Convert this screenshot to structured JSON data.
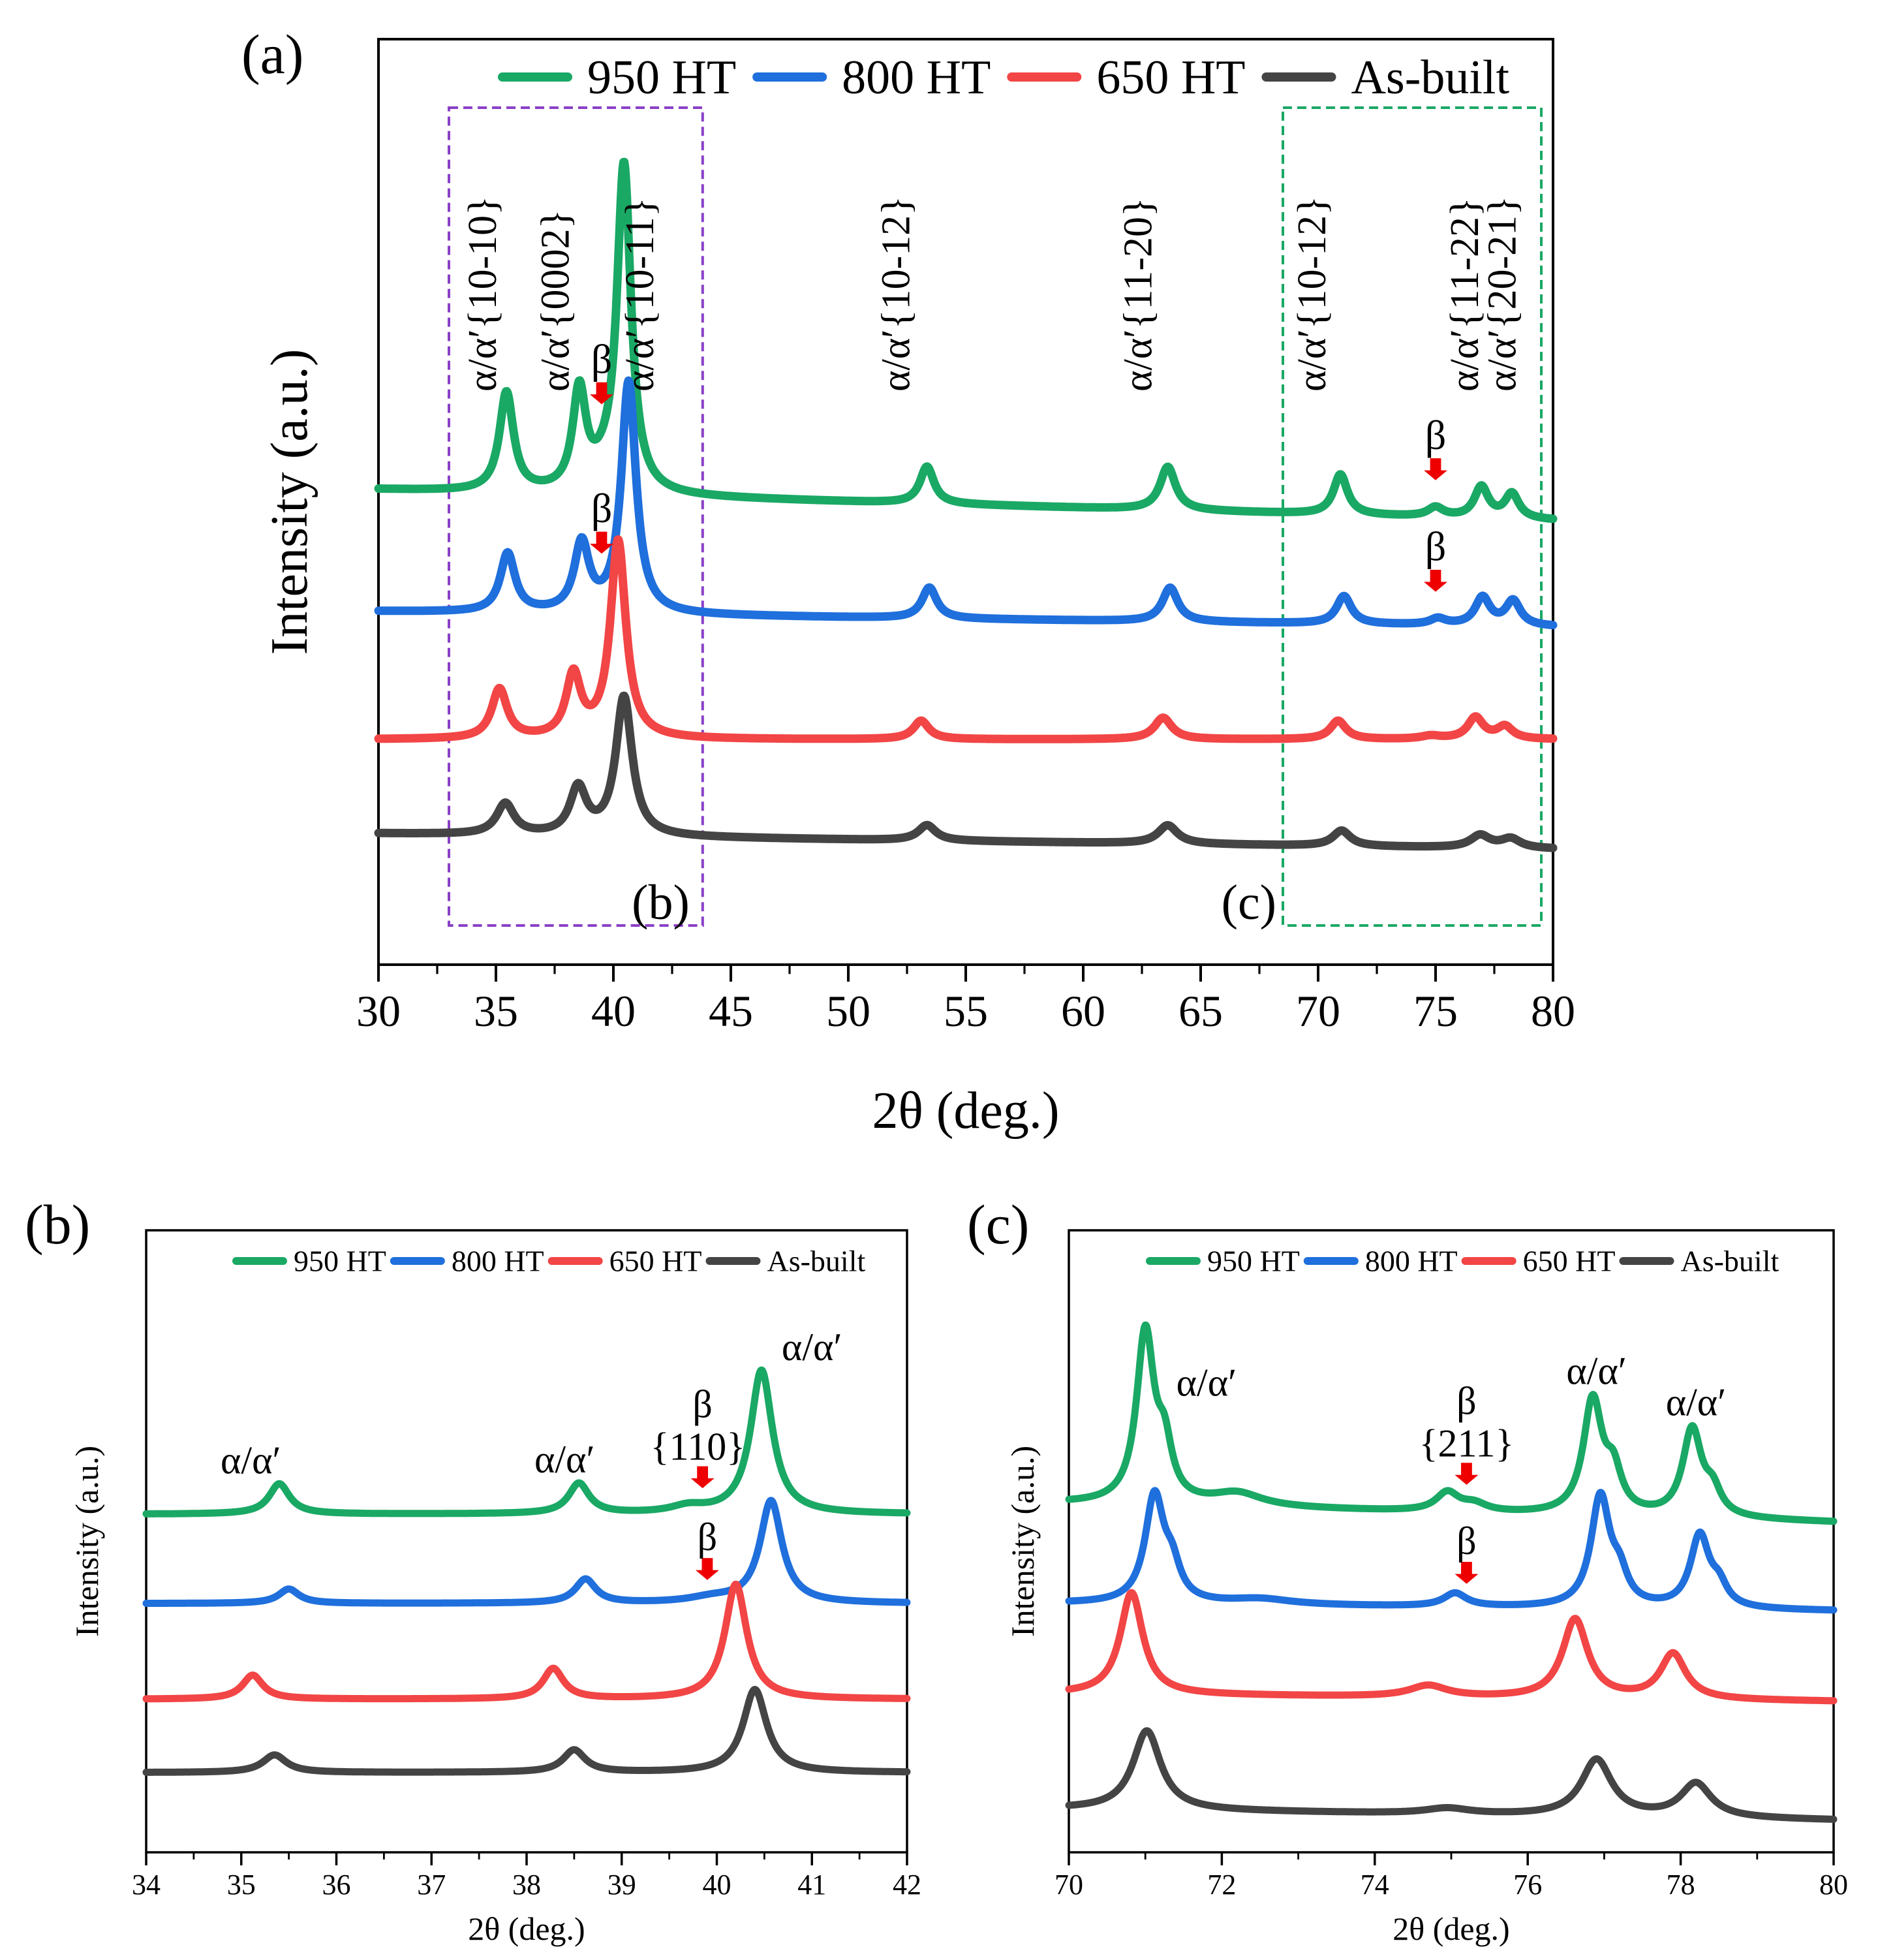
{
  "figure": {
    "panel_labels": {
      "a": "(a)",
      "b": "(b)",
      "c": "(c)"
    },
    "colors": {
      "950 HT": "#1aa865",
      "800 HT": "#1f6fdc",
      "650 HT": "#f24545",
      "As-built": "#444444",
      "beta_arrow": "#ee0000",
      "box_b": "#8a3fc7",
      "box_c": "#1aa865"
    }
  },
  "chart_data": [
    {
      "panel": "a",
      "type": "line",
      "title": "",
      "xlabel": "2θ (deg.)",
      "ylabel": "Intensity (a.u.)",
      "xlim": [
        30,
        80
      ],
      "xticks": [
        "30",
        "35",
        "40",
        "45",
        "50",
        "55",
        "60",
        "65",
        "70",
        "75",
        "80"
      ],
      "legend": [
        "950 HT",
        "800 HT",
        "650 HT",
        "As-built"
      ],
      "legend_position": "top",
      "series": [
        {
          "name": "950 HT",
          "baseline": 11.9,
          "slope": -0.02,
          "peaks": [
            [
              35.45,
              0.36,
              3.2
            ],
            [
              38.55,
              0.34,
              3.2
            ],
            [
              39.6,
              0.6,
              0.4
            ],
            [
              40.45,
              0.36,
              10.6
            ],
            [
              53.35,
              0.36,
              1.2
            ],
            [
              63.6,
              0.4,
              1.4
            ],
            [
              70.95,
              0.36,
              1.3
            ],
            [
              75.0,
              0.4,
              0.3
            ],
            [
              76.95,
              0.36,
              1.0
            ],
            [
              78.25,
              0.36,
              0.8
            ]
          ]
        },
        {
          "name": "800 HT",
          "baseline": 8.2,
          "slope": -0.01,
          "peaks": [
            [
              35.5,
              0.38,
              1.9
            ],
            [
              38.65,
              0.38,
              2.2
            ],
            [
              40.65,
              0.38,
              7.5
            ],
            [
              53.45,
              0.38,
              1.0
            ],
            [
              63.7,
              0.4,
              1.1
            ],
            [
              71.1,
              0.38,
              0.9
            ],
            [
              75.1,
              0.4,
              0.2
            ],
            [
              77.0,
              0.38,
              0.9
            ],
            [
              78.3,
              0.38,
              0.8
            ]
          ]
        },
        {
          "name": "650 HT",
          "baseline": 4.3,
          "slope": 0.0,
          "peaks": [
            [
              35.15,
              0.4,
              1.6
            ],
            [
              38.3,
              0.38,
              2.0
            ],
            [
              40.2,
              0.4,
              6.4
            ],
            [
              53.1,
              0.4,
              0.6
            ],
            [
              63.4,
              0.45,
              0.7
            ],
            [
              70.85,
              0.4,
              0.6
            ],
            [
              74.8,
              0.5,
              0.1
            ],
            [
              76.7,
              0.4,
              0.7
            ],
            [
              77.95,
              0.4,
              0.4
            ]
          ]
        },
        {
          "name": "As-built",
          "baseline": 1.0,
          "slope": -0.01,
          "peaks": [
            [
              35.4,
              0.45,
              1.0
            ],
            [
              38.5,
              0.42,
              1.5
            ],
            [
              40.45,
              0.42,
              4.5
            ],
            [
              53.35,
              0.45,
              0.5
            ],
            [
              63.6,
              0.5,
              0.6
            ],
            [
              71.0,
              0.45,
              0.5
            ],
            [
              76.9,
              0.5,
              0.4
            ],
            [
              78.2,
              0.5,
              0.3
            ]
          ]
        }
      ],
      "peak_labels": [
        {
          "text": "α/α′{10-10}",
          "x": 35.0
        },
        {
          "text": "α/α′{0002}",
          "x": 38.1
        },
        {
          "text": "α/α′{10-11}",
          "x": 41.7
        },
        {
          "text": "α/α′{10-12}",
          "x": 52.6
        },
        {
          "text": "α/α′{11-20}",
          "x": 62.9
        },
        {
          "text": "α/α′{10-12}",
          "x": 70.3
        },
        {
          "text": "α/α′{11-22}",
          "x": 76.8
        },
        {
          "text": "α/α′{20-21}",
          "x": 78.4
        }
      ],
      "beta_marks": [
        {
          "text": "β",
          "x": 39.5,
          "series": "950 HT"
        },
        {
          "text": "β",
          "x": 39.5,
          "series": "800 HT"
        },
        {
          "text": "β",
          "x": 75.0,
          "series": "950 HT"
        },
        {
          "text": "β",
          "x": 75.0,
          "series": "800 HT"
        }
      ],
      "inset_boxes": [
        {
          "label": "(b)",
          "x_range": [
            33,
            43.8
          ]
        },
        {
          "label": "(c)",
          "x_range": [
            68.5,
            79.5
          ]
        }
      ]
    },
    {
      "panel": "b",
      "type": "line",
      "title": "",
      "xlabel": "2θ (deg.)",
      "ylabel": "Intensity (a.u.)",
      "xlim": [
        34,
        42
      ],
      "xticks": [
        "34",
        "35",
        "36",
        "37",
        "38",
        "39",
        "40",
        "41",
        "42"
      ],
      "legend": [
        "950 HT",
        "800 HT",
        "650 HT",
        "As-built"
      ],
      "legend_position": "top-right",
      "series": [
        {
          "name": "950 HT",
          "baseline": 8.6,
          "slope": 0.0,
          "peaks": [
            [
              35.4,
              0.13,
              0.95
            ],
            [
              38.55,
              0.13,
              0.95
            ],
            [
              39.7,
              0.22,
              0.2
            ],
            [
              40.47,
              0.14,
              4.5
            ]
          ]
        },
        {
          "name": "800 HT",
          "baseline": 5.8,
          "slope": 0.0,
          "peaks": [
            [
              35.5,
              0.13,
              0.45
            ],
            [
              38.62,
              0.13,
              0.75
            ],
            [
              39.95,
              0.3,
              0.15
            ],
            [
              40.57,
              0.14,
              3.2
            ]
          ]
        },
        {
          "name": "650 HT",
          "baseline": 2.8,
          "slope": 0.0,
          "peaks": [
            [
              35.12,
              0.13,
              0.75
            ],
            [
              38.28,
              0.13,
              0.95
            ],
            [
              40.2,
              0.14,
              3.6
            ]
          ]
        },
        {
          "name": "As-built",
          "baseline": 0.5,
          "slope": 0.0,
          "peaks": [
            [
              35.35,
              0.15,
              0.55
            ],
            [
              38.5,
              0.14,
              0.7
            ],
            [
              40.4,
              0.15,
              2.6
            ]
          ]
        }
      ],
      "annotations": [
        {
          "text": "α/α′",
          "x": 35.1,
          "series": "950 HT"
        },
        {
          "text": "α/α′",
          "x": 38.4,
          "series": "950 HT"
        },
        {
          "text": "α/α′",
          "x": 41.0,
          "series": "950 HT"
        },
        {
          "text": "β",
          "x": 39.85,
          "series": "950 HT"
        },
        {
          "text": "{110}",
          "x": 39.8,
          "series": "950 HT"
        },
        {
          "text": "β",
          "x": 39.9,
          "series": "800 HT"
        }
      ]
    },
    {
      "panel": "c",
      "type": "line",
      "title": "",
      "xlabel": "2θ (deg.)",
      "ylabel": "Intensity (a.u.)",
      "xlim": [
        70,
        80
      ],
      "xticks": [
        "70",
        "72",
        "74",
        "76",
        "78",
        "80"
      ],
      "legend": [
        "950 HT",
        "800 HT",
        "650 HT",
        "As-built"
      ],
      "legend_position": "top-right",
      "series": [
        {
          "name": "950 HT",
          "baseline": 9.0,
          "slope": -0.05,
          "peaks": [
            [
              71.0,
              0.14,
              4.5
            ],
            [
              71.25,
              0.12,
              1.3
            ],
            [
              72.2,
              0.4,
              0.35
            ],
            [
              74.95,
              0.18,
              0.5
            ],
            [
              75.3,
              0.2,
              0.2
            ],
            [
              76.85,
              0.15,
              3.0
            ],
            [
              77.12,
              0.13,
              1.0
            ],
            [
              78.15,
              0.15,
              2.3
            ],
            [
              78.42,
              0.13,
              0.6
            ]
          ]
        },
        {
          "name": "800 HT",
          "baseline": 5.9,
          "slope": -0.02,
          "peaks": [
            [
              71.12,
              0.15,
              2.8
            ],
            [
              71.35,
              0.13,
              0.8
            ],
            [
              72.5,
              0.5,
              0.15
            ],
            [
              75.05,
              0.18,
              0.35
            ],
            [
              76.95,
              0.15,
              2.9
            ],
            [
              77.2,
              0.13,
              0.7
            ],
            [
              78.25,
              0.15,
              1.9
            ],
            [
              78.5,
              0.13,
              0.5
            ]
          ]
        },
        {
          "name": "650 HT",
          "baseline": 3.5,
          "slope": -0.02,
          "peaks": [
            [
              70.82,
              0.18,
              2.7
            ],
            [
              74.7,
              0.3,
              0.3
            ],
            [
              76.62,
              0.2,
              2.1
            ],
            [
              77.9,
              0.2,
              1.2
            ]
          ]
        },
        {
          "name": "As-built",
          "baseline": 0.6,
          "slope": -0.03,
          "peaks": [
            [
              71.02,
              0.22,
              2.1
            ],
            [
              74.95,
              0.35,
              0.15
            ],
            [
              76.9,
              0.24,
              1.5
            ],
            [
              78.2,
              0.24,
              0.9
            ]
          ]
        }
      ],
      "annotations": [
        {
          "text": "α/α′",
          "x": 71.8,
          "series": "950 HT"
        },
        {
          "text": "β",
          "x": 75.2,
          "series": "950 HT"
        },
        {
          "text": "{211}",
          "x": 75.2,
          "series": "950 HT"
        },
        {
          "text": "α/α′",
          "x": 76.9,
          "series": "950 HT"
        },
        {
          "text": "α/α′",
          "x": 78.2,
          "series": "950 HT"
        },
        {
          "text": "β",
          "x": 75.2,
          "series": "800 HT"
        }
      ]
    }
  ]
}
